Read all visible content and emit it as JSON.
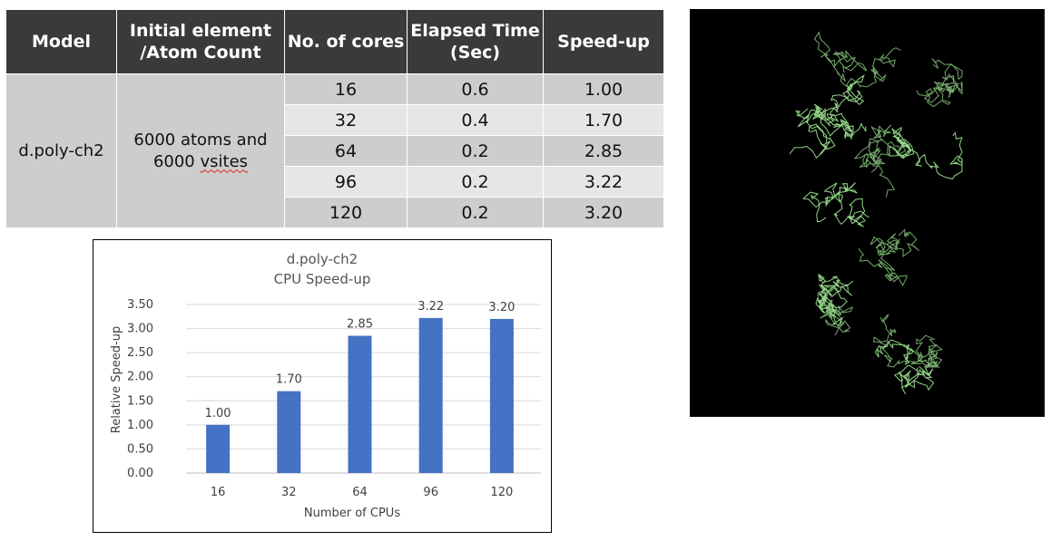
{
  "table": {
    "headers": [
      "Model",
      "Initial element /Atom Count",
      "No. of cores",
      "Elapsed Time (Sec)",
      "Speed-up"
    ],
    "model": "d.poly-ch2",
    "atom_count_line1": "6000 atoms and",
    "atom_count_line2": "6000",
    "atom_count_word": "vsites",
    "rows": [
      {
        "cores": "16",
        "time": "0.6",
        "speedup": "1.00"
      },
      {
        "cores": "32",
        "time": "0.4",
        "speedup": "1.70"
      },
      {
        "cores": "64",
        "time": "0.2",
        "speedup": "2.85"
      },
      {
        "cores": "96",
        "time": "0.2",
        "speedup": "3.22"
      },
      {
        "cores": "120",
        "time": "0.2",
        "speedup": "3.20"
      }
    ]
  },
  "chart_data": {
    "type": "bar",
    "title": "d.poly-ch2",
    "subtitle": "CPU Speed-up",
    "xlabel": "Number of CPUs",
    "ylabel": "Relative Speed-up",
    "categories": [
      "16",
      "32",
      "64",
      "96",
      "120"
    ],
    "values": [
      1.0,
      1.7,
      2.85,
      3.22,
      3.2
    ],
    "value_labels": [
      "1.00",
      "1.70",
      "2.85",
      "3.22",
      "3.20"
    ],
    "yticks": [
      "0.00",
      "0.50",
      "1.00",
      "1.50",
      "2.00",
      "2.50",
      "3.00",
      "3.50"
    ],
    "ylim": [
      0,
      3.5
    ],
    "grid": true,
    "bar_color": "#4472c4"
  },
  "image": {
    "description_icon": "protein-structure-image",
    "background_color": "#000000",
    "strand_color": "#9be28f"
  }
}
